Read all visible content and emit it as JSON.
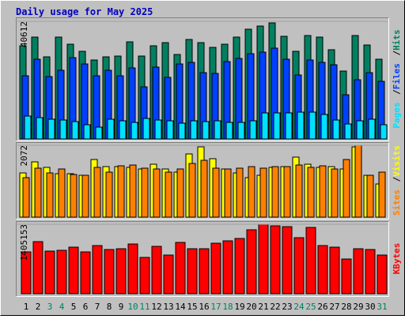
{
  "chart_data": [
    {
      "type": "bar",
      "title": "Daily usage for May 2025",
      "ylim": [
        0,
        40612
      ],
      "yticks": [
        40612
      ],
      "legend_separator": "/",
      "series": [
        {
          "name": "Hits",
          "color": "#008060",
          "values": [
            32165,
            35163,
            28348,
            35163,
            32710,
            30256,
            27258,
            28348,
            28620,
            33527,
            28620,
            32165,
            33254,
            29166,
            34345,
            33254,
            31619,
            32710,
            35163,
            37889,
            38979,
            40069,
            35435,
            30256,
            35708,
            35163,
            30801,
            23442,
            35708,
            32437,
            27530
          ]
        },
        {
          "name": "Files",
          "color": "#0040ff",
          "values": [
            21808,
            27533,
            21535,
            23716,
            28078,
            25897,
            21808,
            23716,
            21808,
            24534,
            17992,
            24807,
            21263,
            25897,
            26442,
            22898,
            22626,
            26715,
            27805,
            29441,
            29986,
            31349,
            27533,
            22081,
            27260,
            26442,
            25624,
            15266,
            20445,
            22898,
            19900
          ]
        },
        {
          "name": "Pages",
          "color": "#00e0ff",
          "values": [
            7905,
            7360,
            6815,
            6542,
            5997,
            4907,
            4089,
            6815,
            6270,
            5725,
            7088,
            6542,
            6270,
            5452,
            6270,
            5997,
            6270,
            5725,
            5725,
            6270,
            8996,
            8996,
            8996,
            9269,
            9269,
            8451,
            6542,
            5179,
            6270,
            6815,
            4907
          ]
        }
      ]
    },
    {
      "type": "bar",
      "ylim": [
        0,
        2072
      ],
      "yticks": [
        2072
      ],
      "legend_separator": "/",
      "series": [
        {
          "name": "Visits",
          "color": "#ffff00",
          "values": [
            1275,
            1594,
            1435,
            1252,
            1252,
            1207,
            1662,
            1457,
            1457,
            1435,
            1389,
            1526,
            1389,
            1298,
            1822,
            2027,
            1685,
            1389,
            1275,
            1139,
            1207,
            1435,
            1457,
            1731,
            1526,
            1435,
            1457,
            1389,
            2027,
            1207,
            956
          ]
        },
        {
          "name": "Sites",
          "color": "#ff8000",
          "values": [
            1139,
            1412,
            1275,
            1389,
            1230,
            1207,
            1435,
            1298,
            1480,
            1503,
            1412,
            1389,
            1298,
            1389,
            1548,
            1639,
            1412,
            1389,
            1412,
            1457,
            1412,
            1457,
            1457,
            1503,
            1435,
            1480,
            1389,
            1662,
            2072,
            1207,
            1298
          ]
        }
      ]
    },
    {
      "type": "bar",
      "ylim": [
        0,
        1405153
      ],
      "yticks": [
        1405153
      ],
      "categories": [
        "1",
        "2",
        "3",
        "4",
        "5",
        "6",
        "7",
        "8",
        "9",
        "10",
        "11",
        "12",
        "13",
        "14",
        "15",
        "16",
        "17",
        "18",
        "19",
        "20",
        "21",
        "22",
        "23",
        "24",
        "25",
        "26",
        "27",
        "28",
        "29",
        "30",
        "31"
      ],
      "highlight_categories": [
        "3",
        "4",
        "10",
        "11",
        "17",
        "18",
        "24",
        "25",
        "31"
      ],
      "category_color": "#000000",
      "highlight_color": "#008060",
      "series": [
        {
          "name": "KBytes",
          "color": "#ff0000",
          "values": [
            846304,
            1053888,
            862272,
            878240,
            942112,
            846304,
            974048,
            894208,
            910176,
            1005984,
            734528,
            958080,
            782432,
            1037920,
            910176,
            910176,
            1021952,
            1069856,
            1117760,
            1293408,
            1405153,
            1373248,
            1357280,
            1133728,
            1341312,
            974048,
            942112,
            702592,
            910176,
            894208,
            782432
          ]
        }
      ]
    }
  ]
}
